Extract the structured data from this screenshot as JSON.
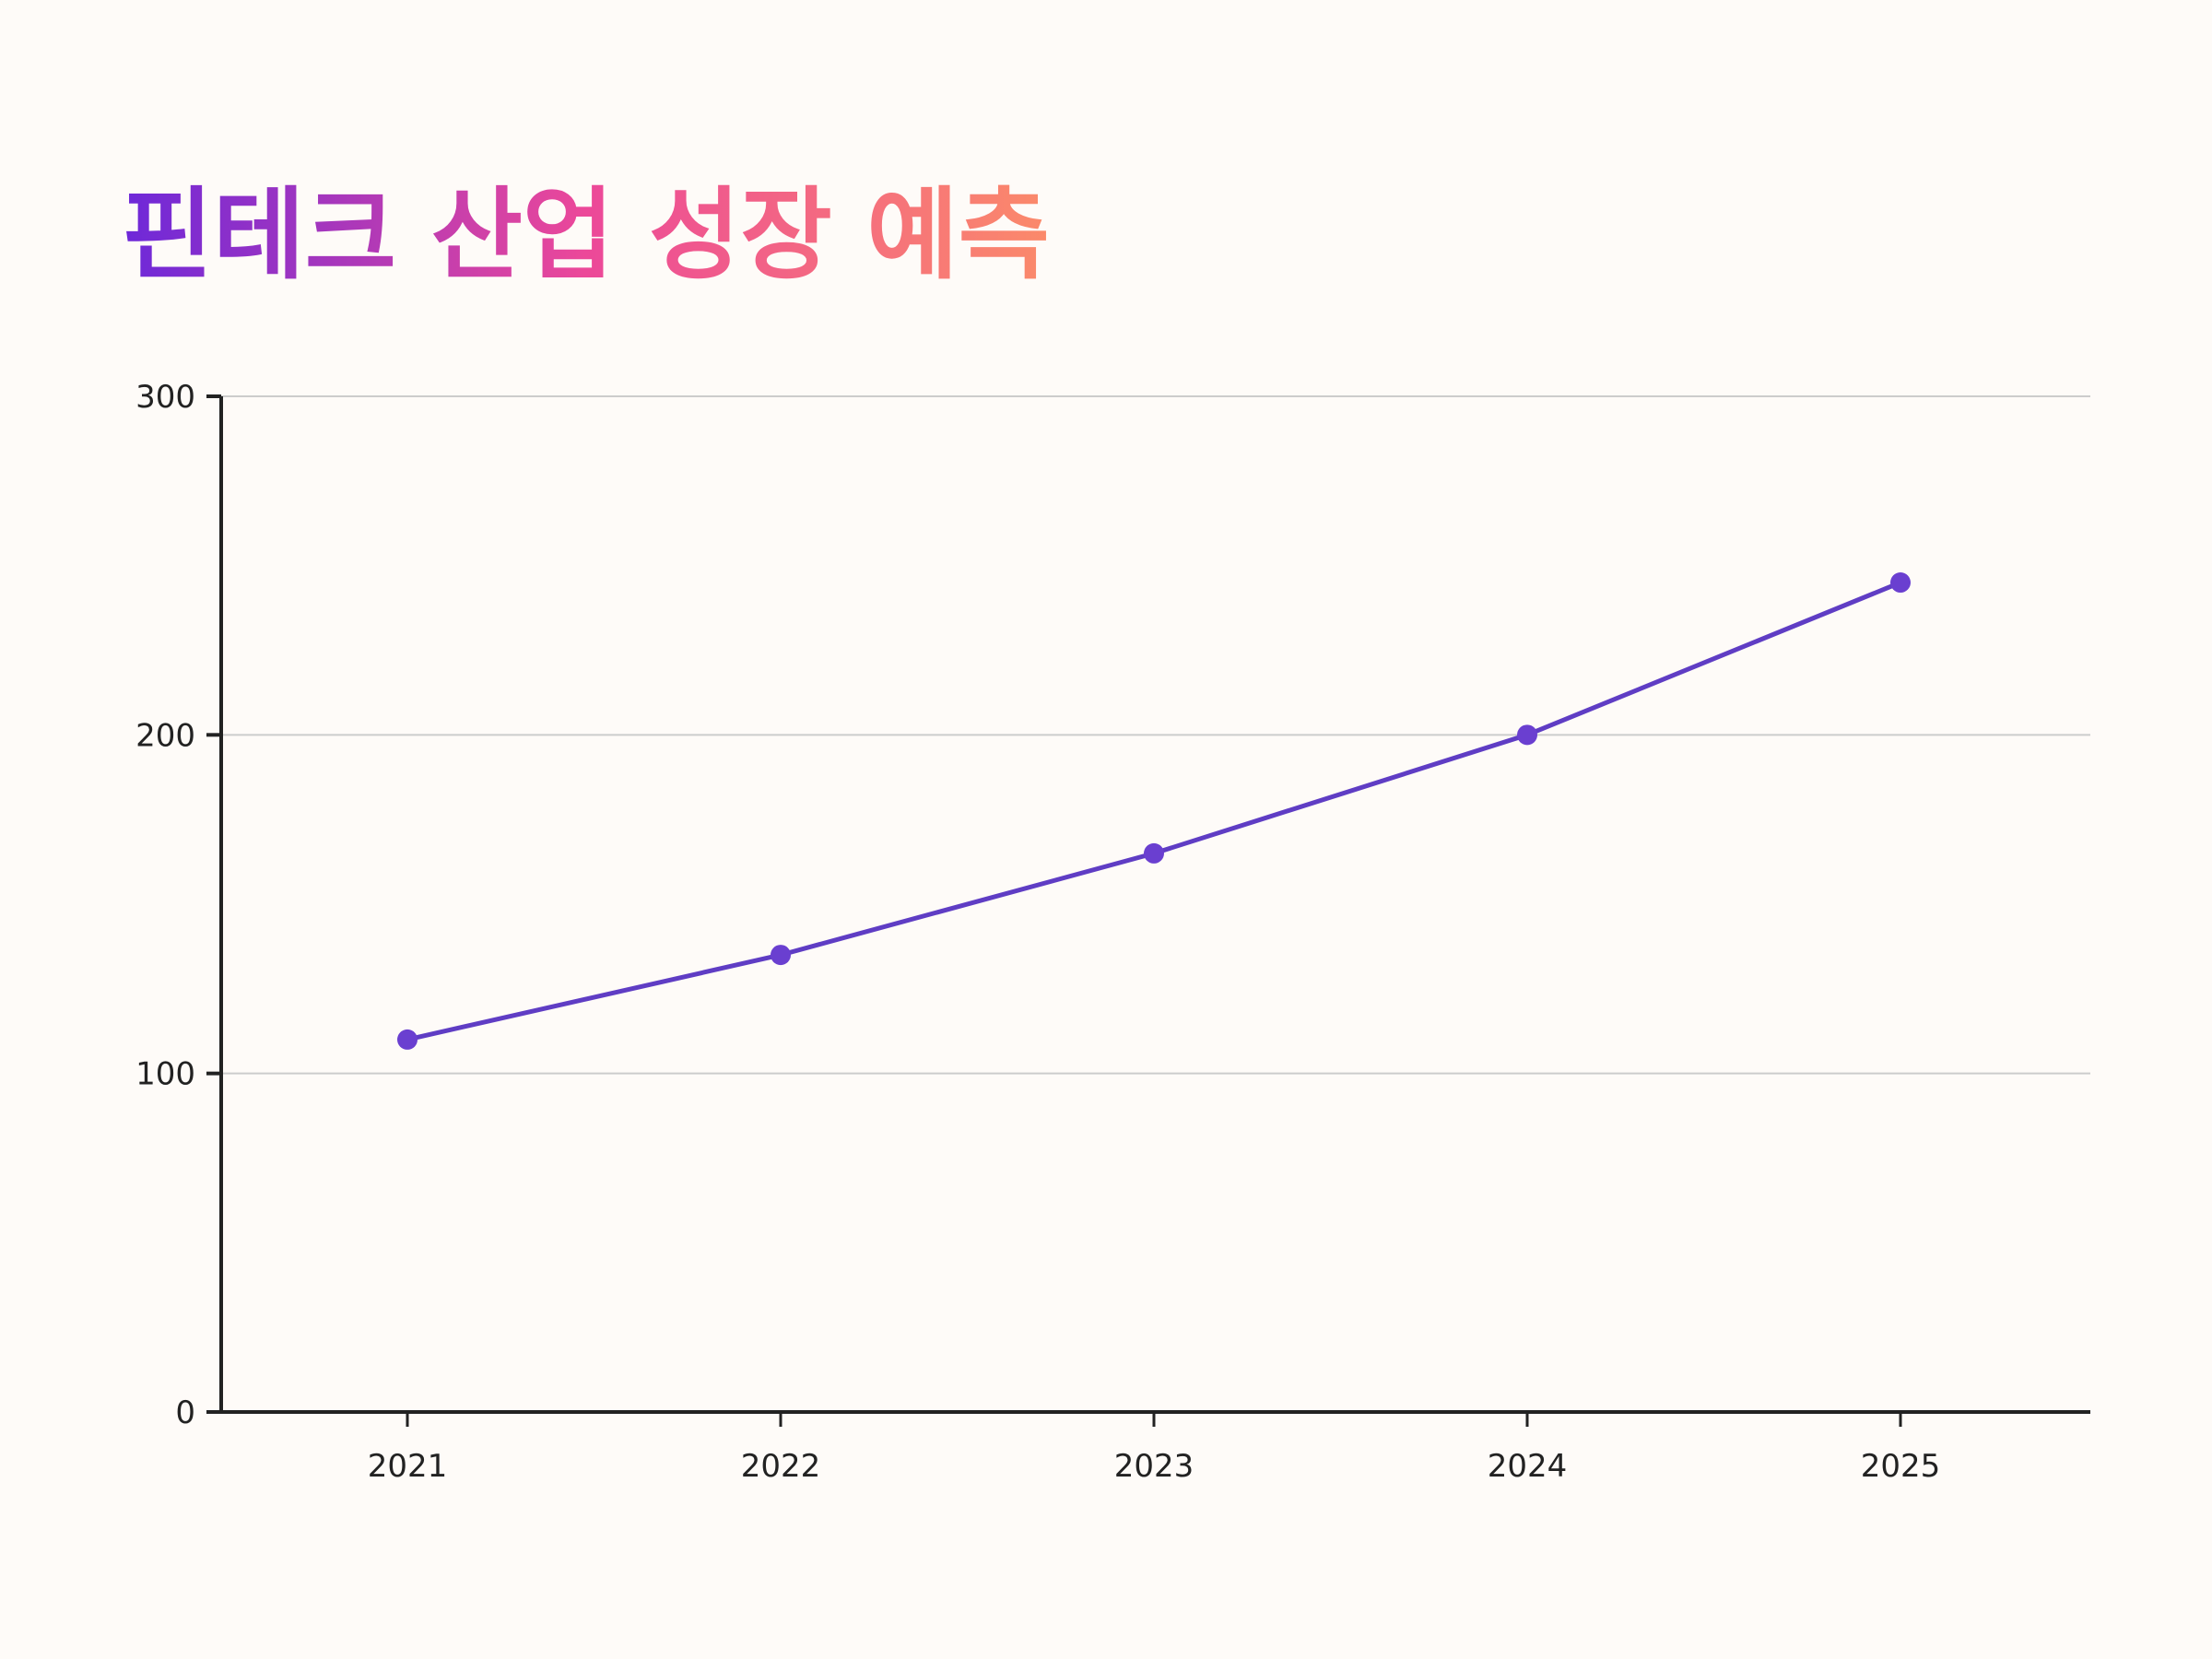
{
  "title": "핀테크 산업 성장 예측",
  "colors": {
    "background": "#fefbf8",
    "line": "#5f3dc4",
    "point": "#6a3fd0",
    "axis": "#222222",
    "grid": "#cccccc",
    "title_gradient_start": "#6d28d9",
    "title_gradient_mid": "#ec4899",
    "title_gradient_end": "#fb8a6a"
  },
  "chart_data": {
    "type": "line",
    "title": "핀테크 산업 성장 예측",
    "xlabel": "",
    "ylabel": "",
    "categories": [
      "2021",
      "2022",
      "2023",
      "2024",
      "2025"
    ],
    "series": [
      {
        "values": [
          110,
          135,
          165,
          200,
          245
        ]
      }
    ],
    "ylim": [
      0,
      300
    ],
    "yticks": [
      "0",
      "100",
      "200",
      "300"
    ],
    "grid": true,
    "legend": "none"
  }
}
